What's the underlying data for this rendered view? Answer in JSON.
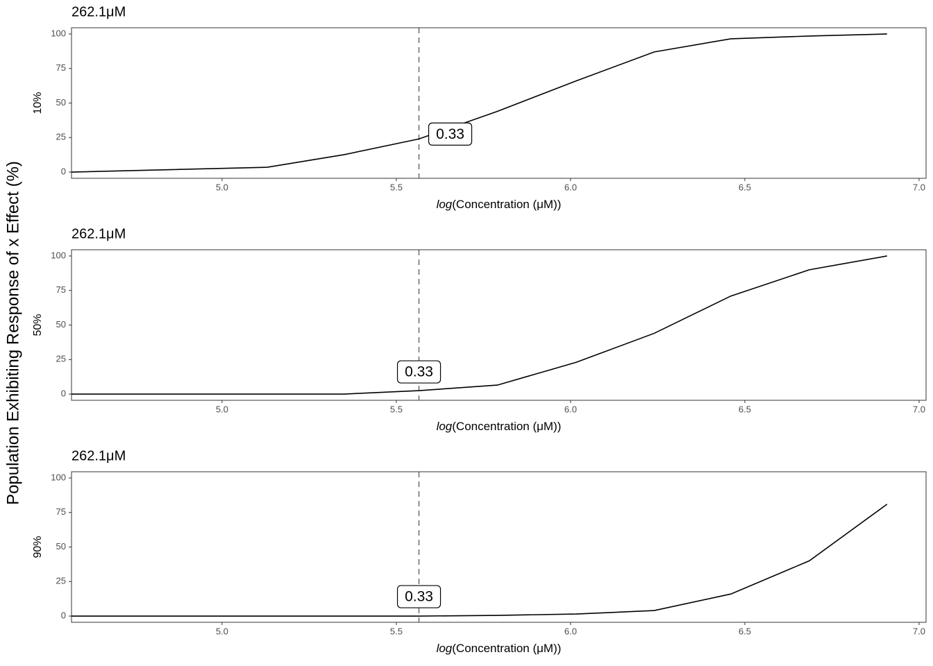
{
  "ylabel": "Population Exhibiting Response of x Effect (%)",
  "chart_data": [
    {
      "type": "line",
      "title": "262.1μM",
      "ylabel": "10%",
      "xlabel": {
        "function": "log",
        "argument": "(Concentration (μM))"
      },
      "x": [
        4.568,
        5.13,
        5.35,
        5.565,
        5.79,
        6.016,
        6.24,
        6.46,
        6.685,
        6.908
      ],
      "values": [
        0,
        3.5,
        12.6,
        24,
        44,
        66,
        87,
        96.5,
        98.5,
        100
      ],
      "color": "#000000",
      "xlim": [
        4.568,
        7.02
      ],
      "ylim": [
        -4.5,
        104.5
      ],
      "xticks": [
        {
          "value": 5,
          "label": "5.0"
        },
        {
          "value": 5.5,
          "label": "5.5"
        },
        {
          "value": 6,
          "label": "6.0"
        },
        {
          "value": 6.5,
          "label": "6.5"
        },
        {
          "value": 7,
          "label": "7.0"
        }
      ],
      "yticks": [
        0,
        25,
        50,
        75,
        100
      ],
      "grid": false,
      "annotation": {
        "x": 5.565,
        "label": "0.33"
      }
    },
    {
      "type": "line",
      "title": "262.1μM",
      "ylabel": "50%",
      "xlabel": {
        "function": "log",
        "argument": "(Concentration (μM))"
      },
      "x": [
        4.568,
        5.13,
        5.35,
        5.565,
        5.79,
        6.016,
        6.24,
        6.46,
        6.685,
        6.908
      ],
      "values": [
        0,
        0,
        0,
        2.5,
        6.5,
        23,
        44,
        71,
        90,
        100
      ],
      "color": "#000000",
      "xlim": [
        4.568,
        7.02
      ],
      "ylim": [
        -4.5,
        104.5
      ],
      "xticks": [
        {
          "value": 5,
          "label": "5.0"
        },
        {
          "value": 5.5,
          "label": "5.5"
        },
        {
          "value": 6,
          "label": "6.0"
        },
        {
          "value": 6.5,
          "label": "6.5"
        },
        {
          "value": 7,
          "label": "7.0"
        }
      ],
      "yticks": [
        0,
        25,
        50,
        75,
        100
      ],
      "grid": false,
      "annotation": {
        "x": 5.565,
        "label": "0.33"
      }
    },
    {
      "type": "line",
      "title": "262.1μM",
      "ylabel": "90%",
      "xlabel": {
        "function": "log",
        "argument": "(Concentration (μM))"
      },
      "x": [
        4.568,
        5.13,
        5.35,
        5.565,
        5.79,
        6.016,
        6.24,
        6.46,
        6.685,
        6.908
      ],
      "values": [
        0,
        0,
        0,
        0,
        0.5,
        1.5,
        4,
        16,
        40,
        81
      ],
      "color": "#000000",
      "xlim": [
        4.568,
        7.02
      ],
      "ylim": [
        -4.5,
        104.5
      ],
      "xticks": [
        {
          "value": 5,
          "label": "5.0"
        },
        {
          "value": 5.5,
          "label": "5.5"
        },
        {
          "value": 6,
          "label": "6.0"
        },
        {
          "value": 6.5,
          "label": "6.5"
        },
        {
          "value": 7,
          "label": "7.0"
        }
      ],
      "yticks": [
        0,
        25,
        50,
        75,
        100
      ],
      "grid": false,
      "annotation": {
        "x": 5.565,
        "label": "0.33"
      }
    }
  ]
}
